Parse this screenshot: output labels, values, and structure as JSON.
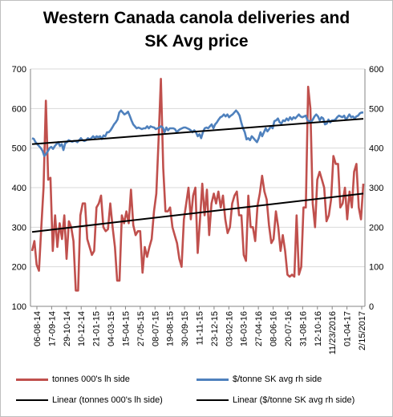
{
  "chart_data": {
    "type": "line",
    "title": "Western Canada canola deliveries and SK Avg price",
    "title_lines": [
      "Western Canada canola deliveries and",
      "SK Avg price"
    ],
    "left_axis": {
      "ylim": [
        100,
        700
      ],
      "ticks": [
        "100",
        "200",
        "300",
        "400",
        "500",
        "600",
        "700"
      ]
    },
    "right_axis": {
      "ylim": [
        0,
        600
      ],
      "ticks": [
        "0",
        "100",
        "200",
        "300",
        "400",
        "500",
        "600"
      ]
    },
    "x_tick_labels": [
      "06-08-14",
      "17-09-14",
      "29-10-14",
      "10-12-14",
      "21-01-15",
      "04-03-15",
      "15-04-15",
      "27-05-15",
      "08-07-15",
      "19-08-15",
      "30-09-15",
      "11-11-15",
      "23-12-15",
      "03-02-16",
      "16-03-16",
      "27-04-16",
      "08-06-16",
      "20-07-16",
      "31-08-16",
      "12-10-16",
      "11/23/2016",
      "01-04-17",
      "2/15/2017"
    ],
    "legend_position": "bottom",
    "grid": {
      "horizontal": true,
      "vertical": false
    },
    "series": [
      {
        "name": "tonnes 000's lh side",
        "axis": "left",
        "color": "#c0504d",
        "values": [
          240,
          265,
          205,
          190,
          300,
          400,
          620,
          420,
          425,
          240,
          330,
          250,
          310,
          270,
          330,
          220,
          315,
          300,
          265,
          140,
          140,
          330,
          360,
          360,
          270,
          250,
          230,
          240,
          350,
          360,
          380,
          300,
          290,
          295,
          360,
          300,
          250,
          165,
          165,
          330,
          310,
          340,
          310,
          395,
          305,
          280,
          290,
          290,
          185,
          250,
          225,
          250,
          270,
          340,
          385,
          520,
          675,
          450,
          340,
          340,
          350,
          300,
          280,
          260,
          220,
          200,
          320,
          360,
          400,
          320,
          380,
          400,
          235,
          320,
          410,
          330,
          395,
          280,
          360,
          385,
          360,
          390,
          350,
          380,
          320,
          285,
          300,
          360,
          380,
          390,
          330,
          330,
          230,
          215,
          380,
          300,
          300,
          265,
          355,
          385,
          430,
          390,
          370,
          305,
          260,
          270,
          340,
          300,
          240,
          280,
          240,
          180,
          175,
          180,
          175,
          330,
          180,
          200,
          350,
          350,
          655,
          600,
          360,
          300,
          420,
          440,
          420,
          400,
          315,
          330,
          370,
          480,
          460,
          460,
          350,
          360,
          400,
          320,
          390,
          350,
          440,
          460,
          350,
          320,
          410
        ],
        "trendline": {
          "name": "Linear (tonnes 000's lh side)",
          "start": 288,
          "end": 385
        }
      },
      {
        "name": "$/tonne SK avg rh side",
        "axis": "right",
        "color": "#4f81bd",
        "values": [
          425,
          423,
          415,
          410,
          405,
          400,
          393,
          380,
          385,
          392,
          400,
          403,
          398,
          405,
          410,
          415,
          405,
          410,
          395,
          412,
          415,
          420,
          418,
          416,
          418,
          418,
          415,
          420,
          425,
          420,
          418,
          420,
          425,
          422,
          425,
          430,
          425,
          430,
          428,
          430,
          423,
          432,
          430,
          440,
          440,
          445,
          452,
          460,
          465,
          472,
          490,
          495,
          490,
          485,
          488,
          492,
          482,
          470,
          460,
          455,
          450,
          452,
          450,
          448,
          450,
          450,
          455,
          450,
          455,
          453,
          452,
          448,
          450,
          452,
          455,
          452,
          440,
          452,
          445,
          450,
          450,
          450,
          448,
          440,
          445,
          448,
          450,
          452,
          452,
          450,
          448,
          445,
          440,
          445,
          440,
          430,
          435,
          425,
          440,
          450,
          452,
          450,
          455,
          460,
          450,
          460,
          465,
          472,
          478,
          480,
          485,
          480,
          485,
          478,
          482,
          485,
          490,
          495,
          490,
          482,
          465,
          450,
          440,
          422,
          425,
          420,
          430,
          425,
          420,
          415,
          425,
          440,
          430,
          440,
          450,
          442,
          448,
          455,
          450,
          468,
          470,
          475,
          465,
          462,
          470,
          468,
          475,
          470,
          478,
          472,
          478,
          475,
          480,
          485,
          480,
          478,
          480,
          482,
          470,
          468,
          465,
          472,
          480,
          485,
          480,
          470,
          478,
          475,
          460,
          462,
          472,
          465,
          470,
          470,
          472,
          478,
          482,
          480,
          478,
          482,
          472,
          478,
          485,
          478,
          480,
          475,
          480,
          482,
          488,
          490,
          490
        ],
        "trendline": {
          "name": "Linear ($/tonne SK avg rh side)",
          "start": 410,
          "end": 474
        }
      }
    ]
  },
  "legend": [
    {
      "label": "tonnes 000's lh side",
      "color": "#c0504d",
      "kind": "series"
    },
    {
      "label": "$/tonne SK avg rh side",
      "color": "#4f81bd",
      "kind": "series"
    },
    {
      "label": "Linear (tonnes 000's lh side)",
      "color": "#000000",
      "kind": "trend"
    },
    {
      "label": "Linear ($/tonne SK avg rh side)",
      "color": "#000000",
      "kind": "trend"
    }
  ]
}
